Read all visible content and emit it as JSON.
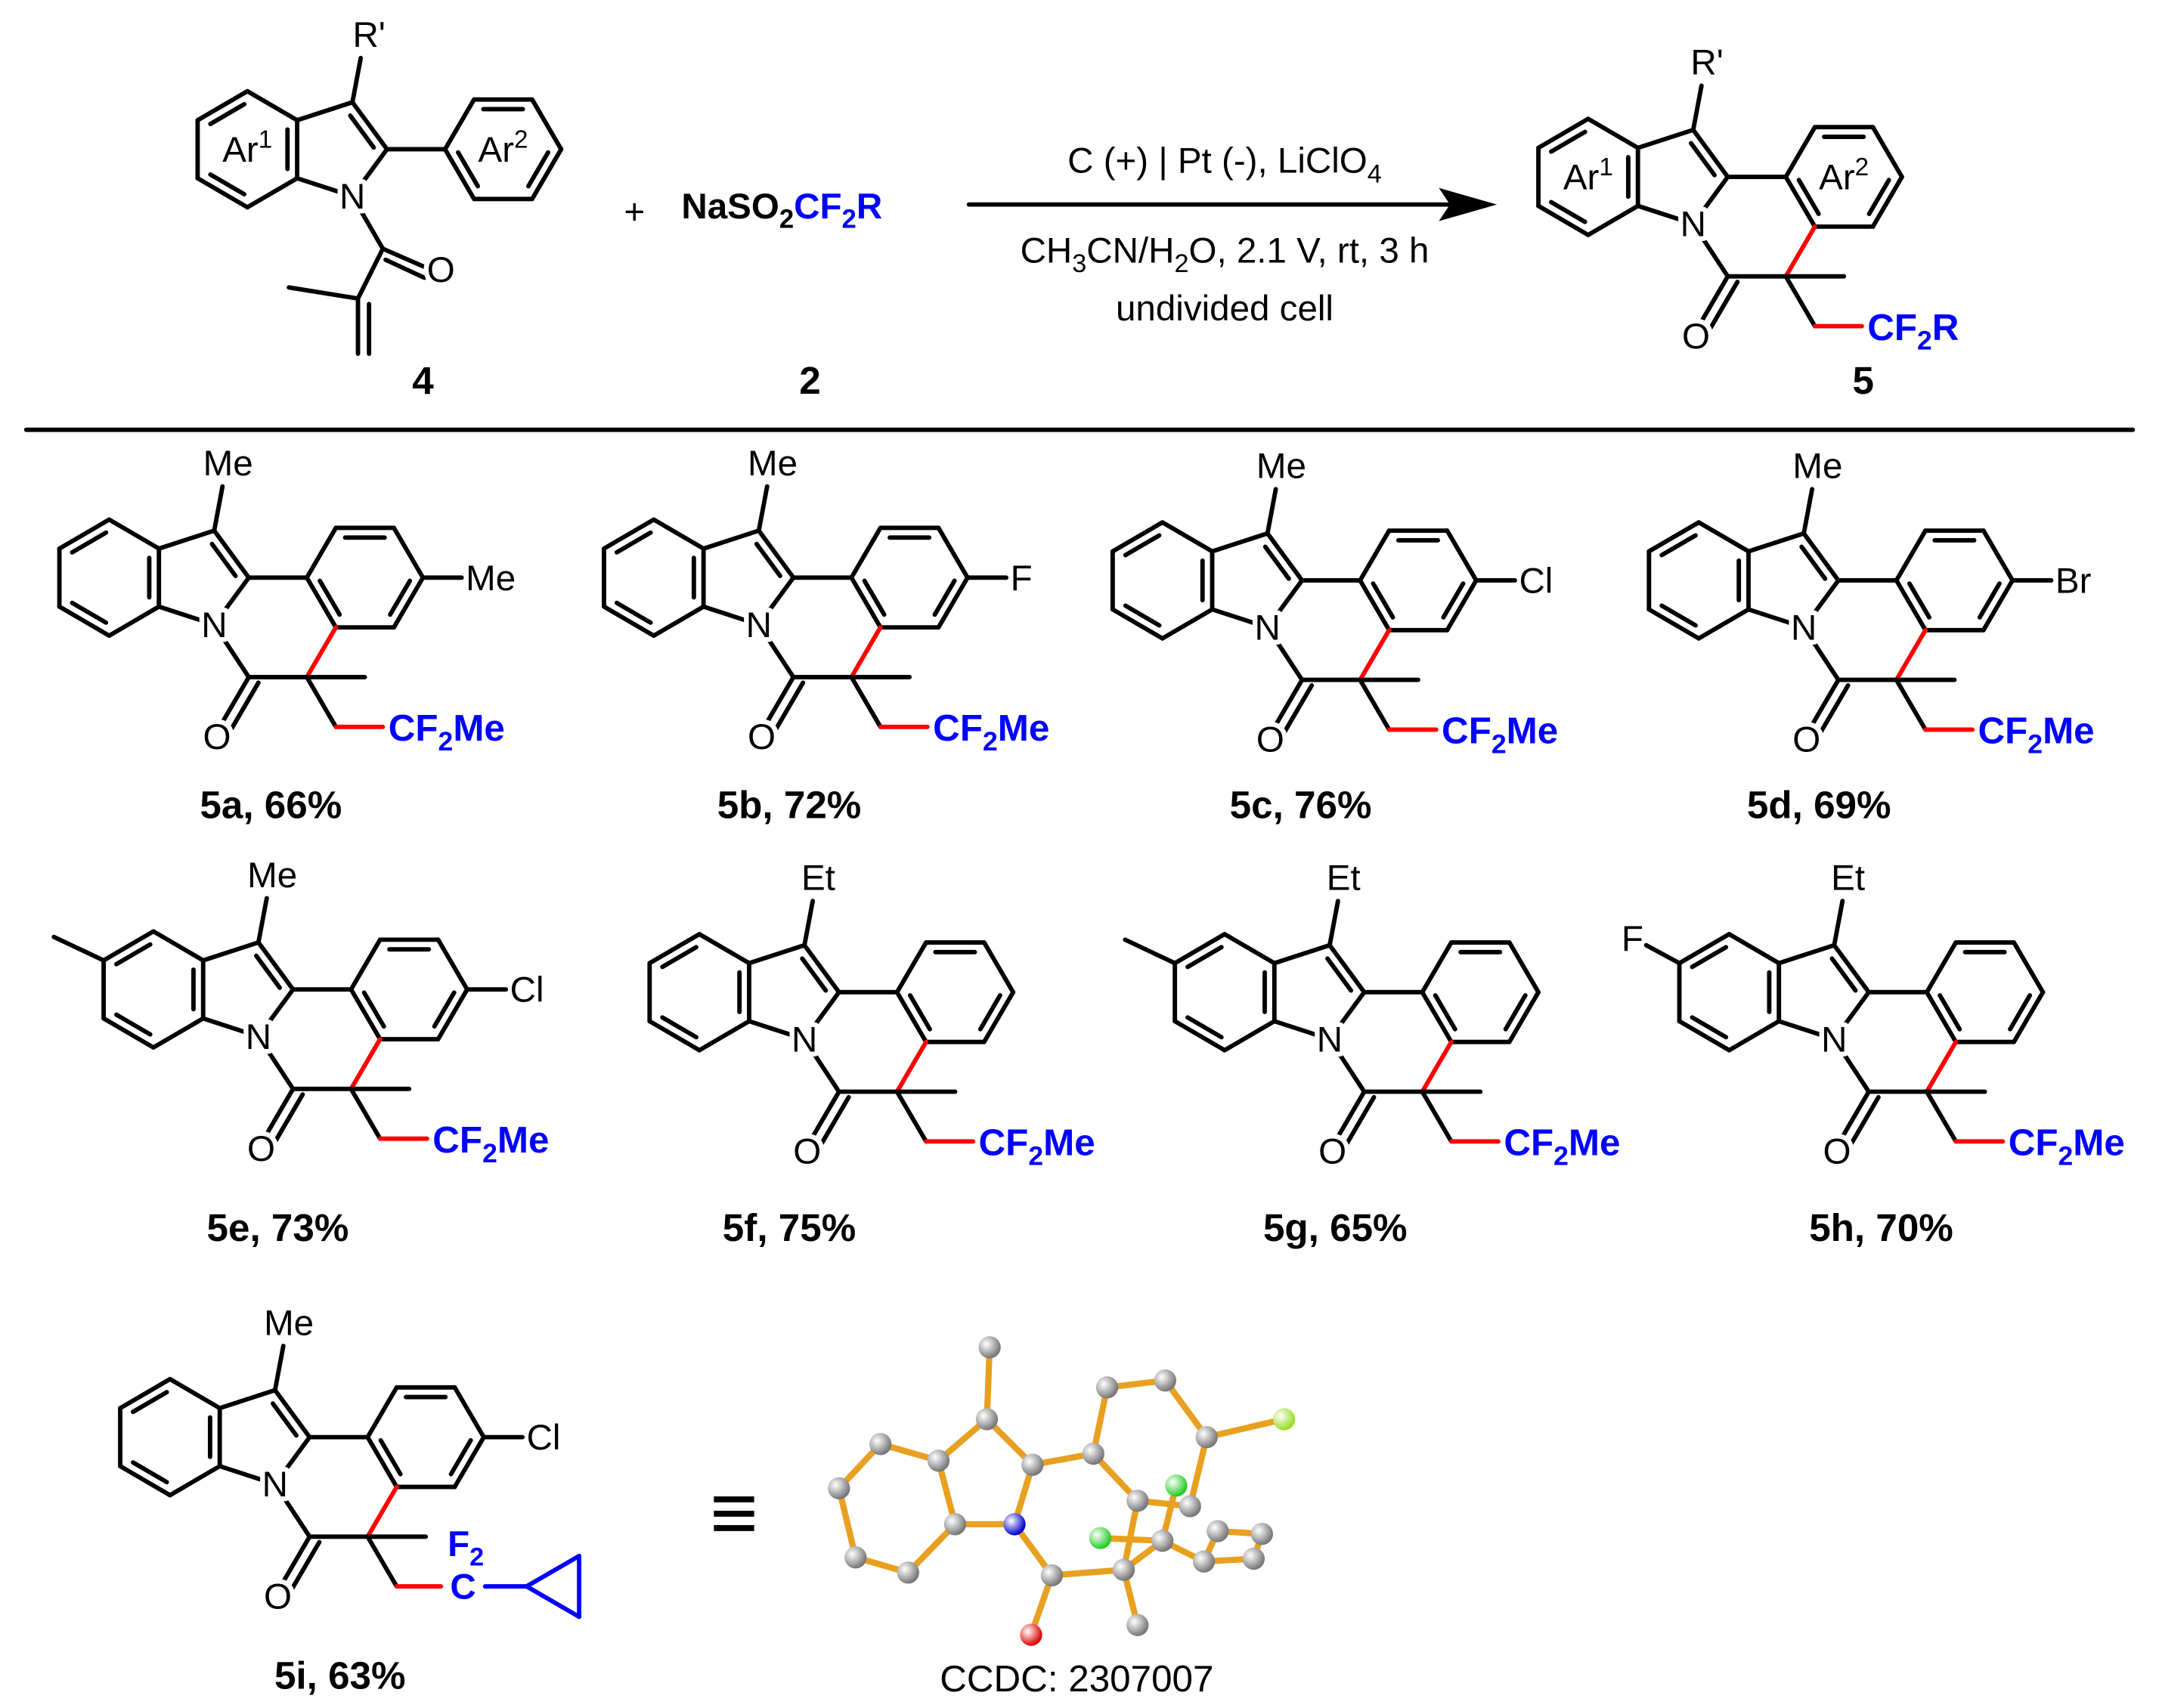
{
  "scheme": {
    "reactant_4": {
      "label": "4",
      "r_prime": "R'",
      "ar1": {
        "base": "Ar",
        "sup": "1"
      },
      "ar2": {
        "base": "Ar",
        "sup": "2"
      },
      "n": "N",
      "o": "O"
    },
    "plus": "+",
    "reagent_2": {
      "label": "2",
      "prefix": "NaSO2",
      "suffix": "CF2R"
    },
    "conditions": {
      "line1": "C (+) | Pt (-), LiClO4",
      "line2": "CH3CN/H2O, 2.1 V, rt, 3 h",
      "line3": "undivided cell"
    },
    "product_5": {
      "label": "5",
      "r_prime": "R'",
      "ar1": {
        "base": "Ar",
        "sup": "1"
      },
      "ar2": {
        "base": "Ar",
        "sup": "2"
      },
      "n": "N",
      "o": "O",
      "cf2": "CF2R"
    }
  },
  "colors": {
    "new_bond": "#ff0000",
    "fluoroalkyl": "#0000ff",
    "crystal_bond": "#e8a020",
    "crystal_carbon": "#777777",
    "crystal_n": "#0000cc",
    "crystal_o": "#dd0000",
    "crystal_f": "#22cc22",
    "crystal_cl": "#99dd22"
  },
  "compounds": [
    {
      "id": "5a",
      "label": "5a, 66%",
      "r_prime": "Me",
      "aryl_sub": "Me",
      "indole_sub": null,
      "cf2": "CF2Me"
    },
    {
      "id": "5b",
      "label": "5b, 72%",
      "r_prime": "Me",
      "aryl_sub": "F",
      "indole_sub": null,
      "cf2": "CF2Me"
    },
    {
      "id": "5c",
      "label": "5c, 76%",
      "r_prime": "Me",
      "aryl_sub": "Cl",
      "indole_sub": null,
      "cf2": "CF2Me"
    },
    {
      "id": "5d",
      "label": "5d, 69%",
      "r_prime": "Me",
      "aryl_sub": "Br",
      "indole_sub": null,
      "cf2": "CF2Me"
    },
    {
      "id": "5e",
      "label": "5e, 73%",
      "r_prime": "Me",
      "aryl_sub": "Cl",
      "indole_sub": "methyl",
      "cf2": "CF2Me"
    },
    {
      "id": "5f",
      "label": "5f, 75%",
      "r_prime": "Et",
      "aryl_sub": null,
      "indole_sub": null,
      "cf2": "CF2Me"
    },
    {
      "id": "5g",
      "label": "5g, 65%",
      "r_prime": "Et",
      "aryl_sub": null,
      "indole_sub": "methyl",
      "cf2": "CF2Me"
    },
    {
      "id": "5h",
      "label": "5h, 70%",
      "r_prime": "Et",
      "aryl_sub": null,
      "indole_sub": "F",
      "cf2": "CF2Me"
    },
    {
      "id": "5i",
      "label": "5i, 63%",
      "r_prime": "Me",
      "aryl_sub": "Cl",
      "indole_sub": null,
      "cf2": "cyclopropyl",
      "cf2_c": "C",
      "cf2_f": "F2"
    }
  ],
  "equivalence_symbol": "≡",
  "crystal": {
    "ccdc": "CCDC: 2307007"
  }
}
